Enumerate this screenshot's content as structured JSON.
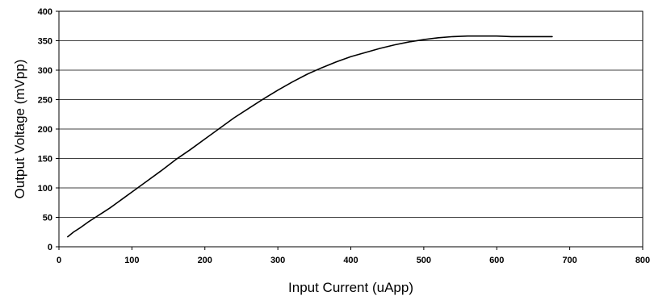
{
  "chart_data": {
    "type": "line",
    "title": "",
    "xlabel": "Input Current (uApp)",
    "ylabel": "Output Voltage (mVpp)",
    "xlim": [
      0,
      800
    ],
    "ylim": [
      0,
      400
    ],
    "xticks": [
      0,
      100,
      200,
      300,
      400,
      500,
      600,
      700,
      800
    ],
    "yticks": [
      0,
      50,
      100,
      150,
      200,
      250,
      300,
      350,
      400
    ],
    "x_tick_labels": [
      "0",
      "100",
      "200",
      "300",
      "400",
      "500",
      "600",
      "700",
      "800"
    ],
    "y_tick_labels": [
      "0",
      "50",
      "100",
      "150",
      "200",
      "250",
      "300",
      "350",
      "400"
    ],
    "grid": "horizontal",
    "legend": "none",
    "series": [
      {
        "color": "#000000",
        "x": [
          12,
          20,
          30,
          40,
          50,
          60,
          70,
          80,
          90,
          100,
          120,
          140,
          160,
          180,
          200,
          220,
          240,
          260,
          280,
          300,
          320,
          340,
          360,
          380,
          400,
          420,
          440,
          460,
          480,
          500,
          520,
          540,
          560,
          580,
          600,
          620,
          640,
          660,
          676
        ],
        "y": [
          17,
          25,
          33,
          42,
          50,
          58,
          66,
          75,
          84,
          93,
          111,
          129,
          148,
          165,
          183,
          201,
          219,
          235,
          251,
          266,
          280,
          293,
          304,
          314,
          323,
          330,
          337,
          343,
          348,
          352,
          355,
          357,
          358,
          358,
          358,
          357,
          357,
          357,
          357
        ]
      }
    ]
  }
}
